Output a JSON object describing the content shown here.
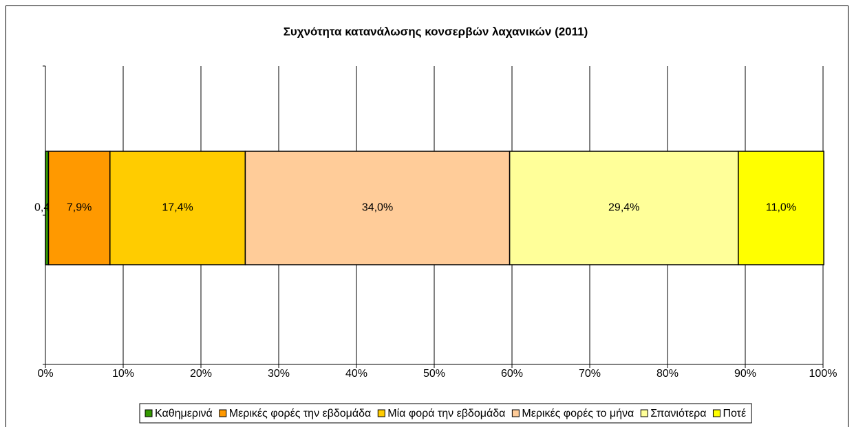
{
  "chart_data": {
    "type": "stacked-bar-horizontal",
    "title": "Συχνότητα κατανάλωσης κονσερβών λαχανικών (2011)",
    "categories": [
      null
    ],
    "series": [
      {
        "name": "Καθημερινά",
        "color": "#339900",
        "values": [
          0.4
        ],
        "value_labels": [
          "0,4%"
        ]
      },
      {
        "name": "Μερικές φορές την εβδομάδα",
        "color": "#ff9900",
        "values": [
          7.9
        ],
        "value_labels": [
          "7,9%"
        ]
      },
      {
        "name": "Μία φορά την εβδομάδα",
        "color": "#ffcc00",
        "values": [
          17.4
        ],
        "value_labels": [
          "17,4%"
        ]
      },
      {
        "name": "Μερικές φορές το μήνα",
        "color": "#ffcc99",
        "values": [
          34.0
        ],
        "value_labels": [
          "34,0%"
        ]
      },
      {
        "name": "Σπανιότερα",
        "color": "#ffff99",
        "values": [
          29.4
        ],
        "value_labels": [
          "29,4%"
        ]
      },
      {
        "name": "Ποτέ",
        "color": "#ffff00",
        "values": [
          11.0
        ],
        "value_labels": [
          "11,0%"
        ]
      }
    ],
    "xlim": [
      0,
      100
    ],
    "xticks": [
      {
        "value": 0,
        "label": "0%"
      },
      {
        "value": 10,
        "label": "10%"
      },
      {
        "value": 20,
        "label": "20%"
      },
      {
        "value": 30,
        "label": "30%"
      },
      {
        "value": 40,
        "label": "40%"
      },
      {
        "value": 50,
        "label": "50%"
      },
      {
        "value": 60,
        "label": "60%"
      },
      {
        "value": 70,
        "label": "70%"
      },
      {
        "value": 80,
        "label": "80%"
      },
      {
        "value": 90,
        "label": "90%"
      },
      {
        "value": 100,
        "label": "100%"
      }
    ],
    "grid": true,
    "legend": "bottom"
  }
}
